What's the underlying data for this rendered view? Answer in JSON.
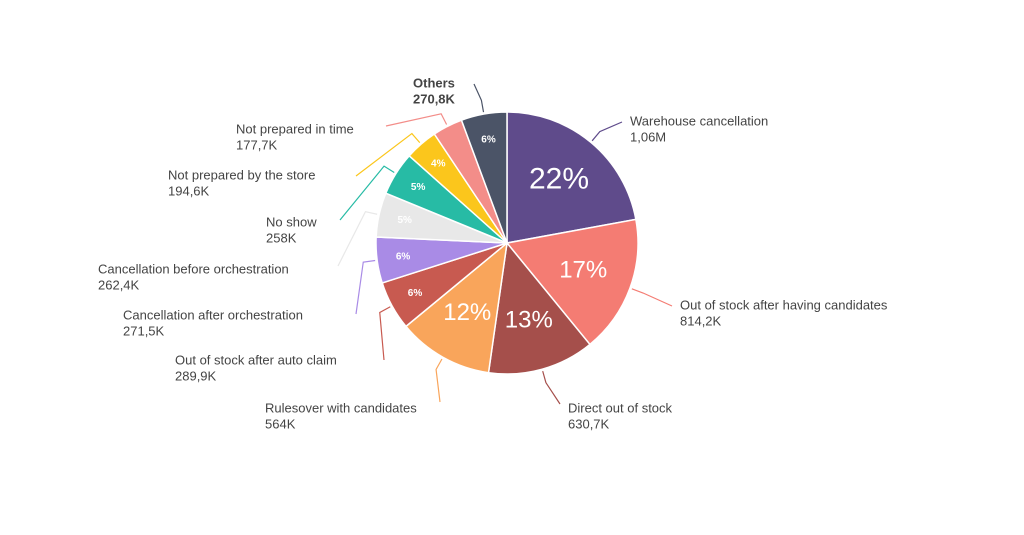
{
  "chart_data": {
    "type": "pie",
    "categories": [
      "Warehouse cancellation",
      "Out of stock after having candidates",
      "Direct out of stock",
      "Rulesover with candidates",
      "Out of stock after auto claim",
      "Cancellation after orchestration",
      "Cancellation before orchestration",
      "No show",
      "Not prepared by the store",
      "Not prepared in time",
      "Others"
    ],
    "values": [
      1060000,
      814200,
      630700,
      564000,
      289900,
      271500,
      262400,
      258000,
      194600,
      177700,
      270800
    ],
    "value_labels": [
      "1,06M",
      "814,2K",
      "630,7K",
      "564K",
      "289,9K",
      "271,5K",
      "262,4K",
      "258K",
      "194,6K",
      "177,7K",
      "270,8K"
    ],
    "percent_labels": [
      "22%",
      "17%",
      "13%",
      "12%",
      "6%",
      "6%",
      "5%",
      "5%",
      "4%",
      null,
      "6%"
    ],
    "colors": [
      "#5f4b8b",
      "#f47c73",
      "#a54f4b",
      "#f9a55b",
      "#c85a50",
      "#a98be6",
      "#e8e8e8",
      "#27bba5",
      "#fbc61c",
      "#f38d89",
      "#4b5467"
    ]
  }
}
